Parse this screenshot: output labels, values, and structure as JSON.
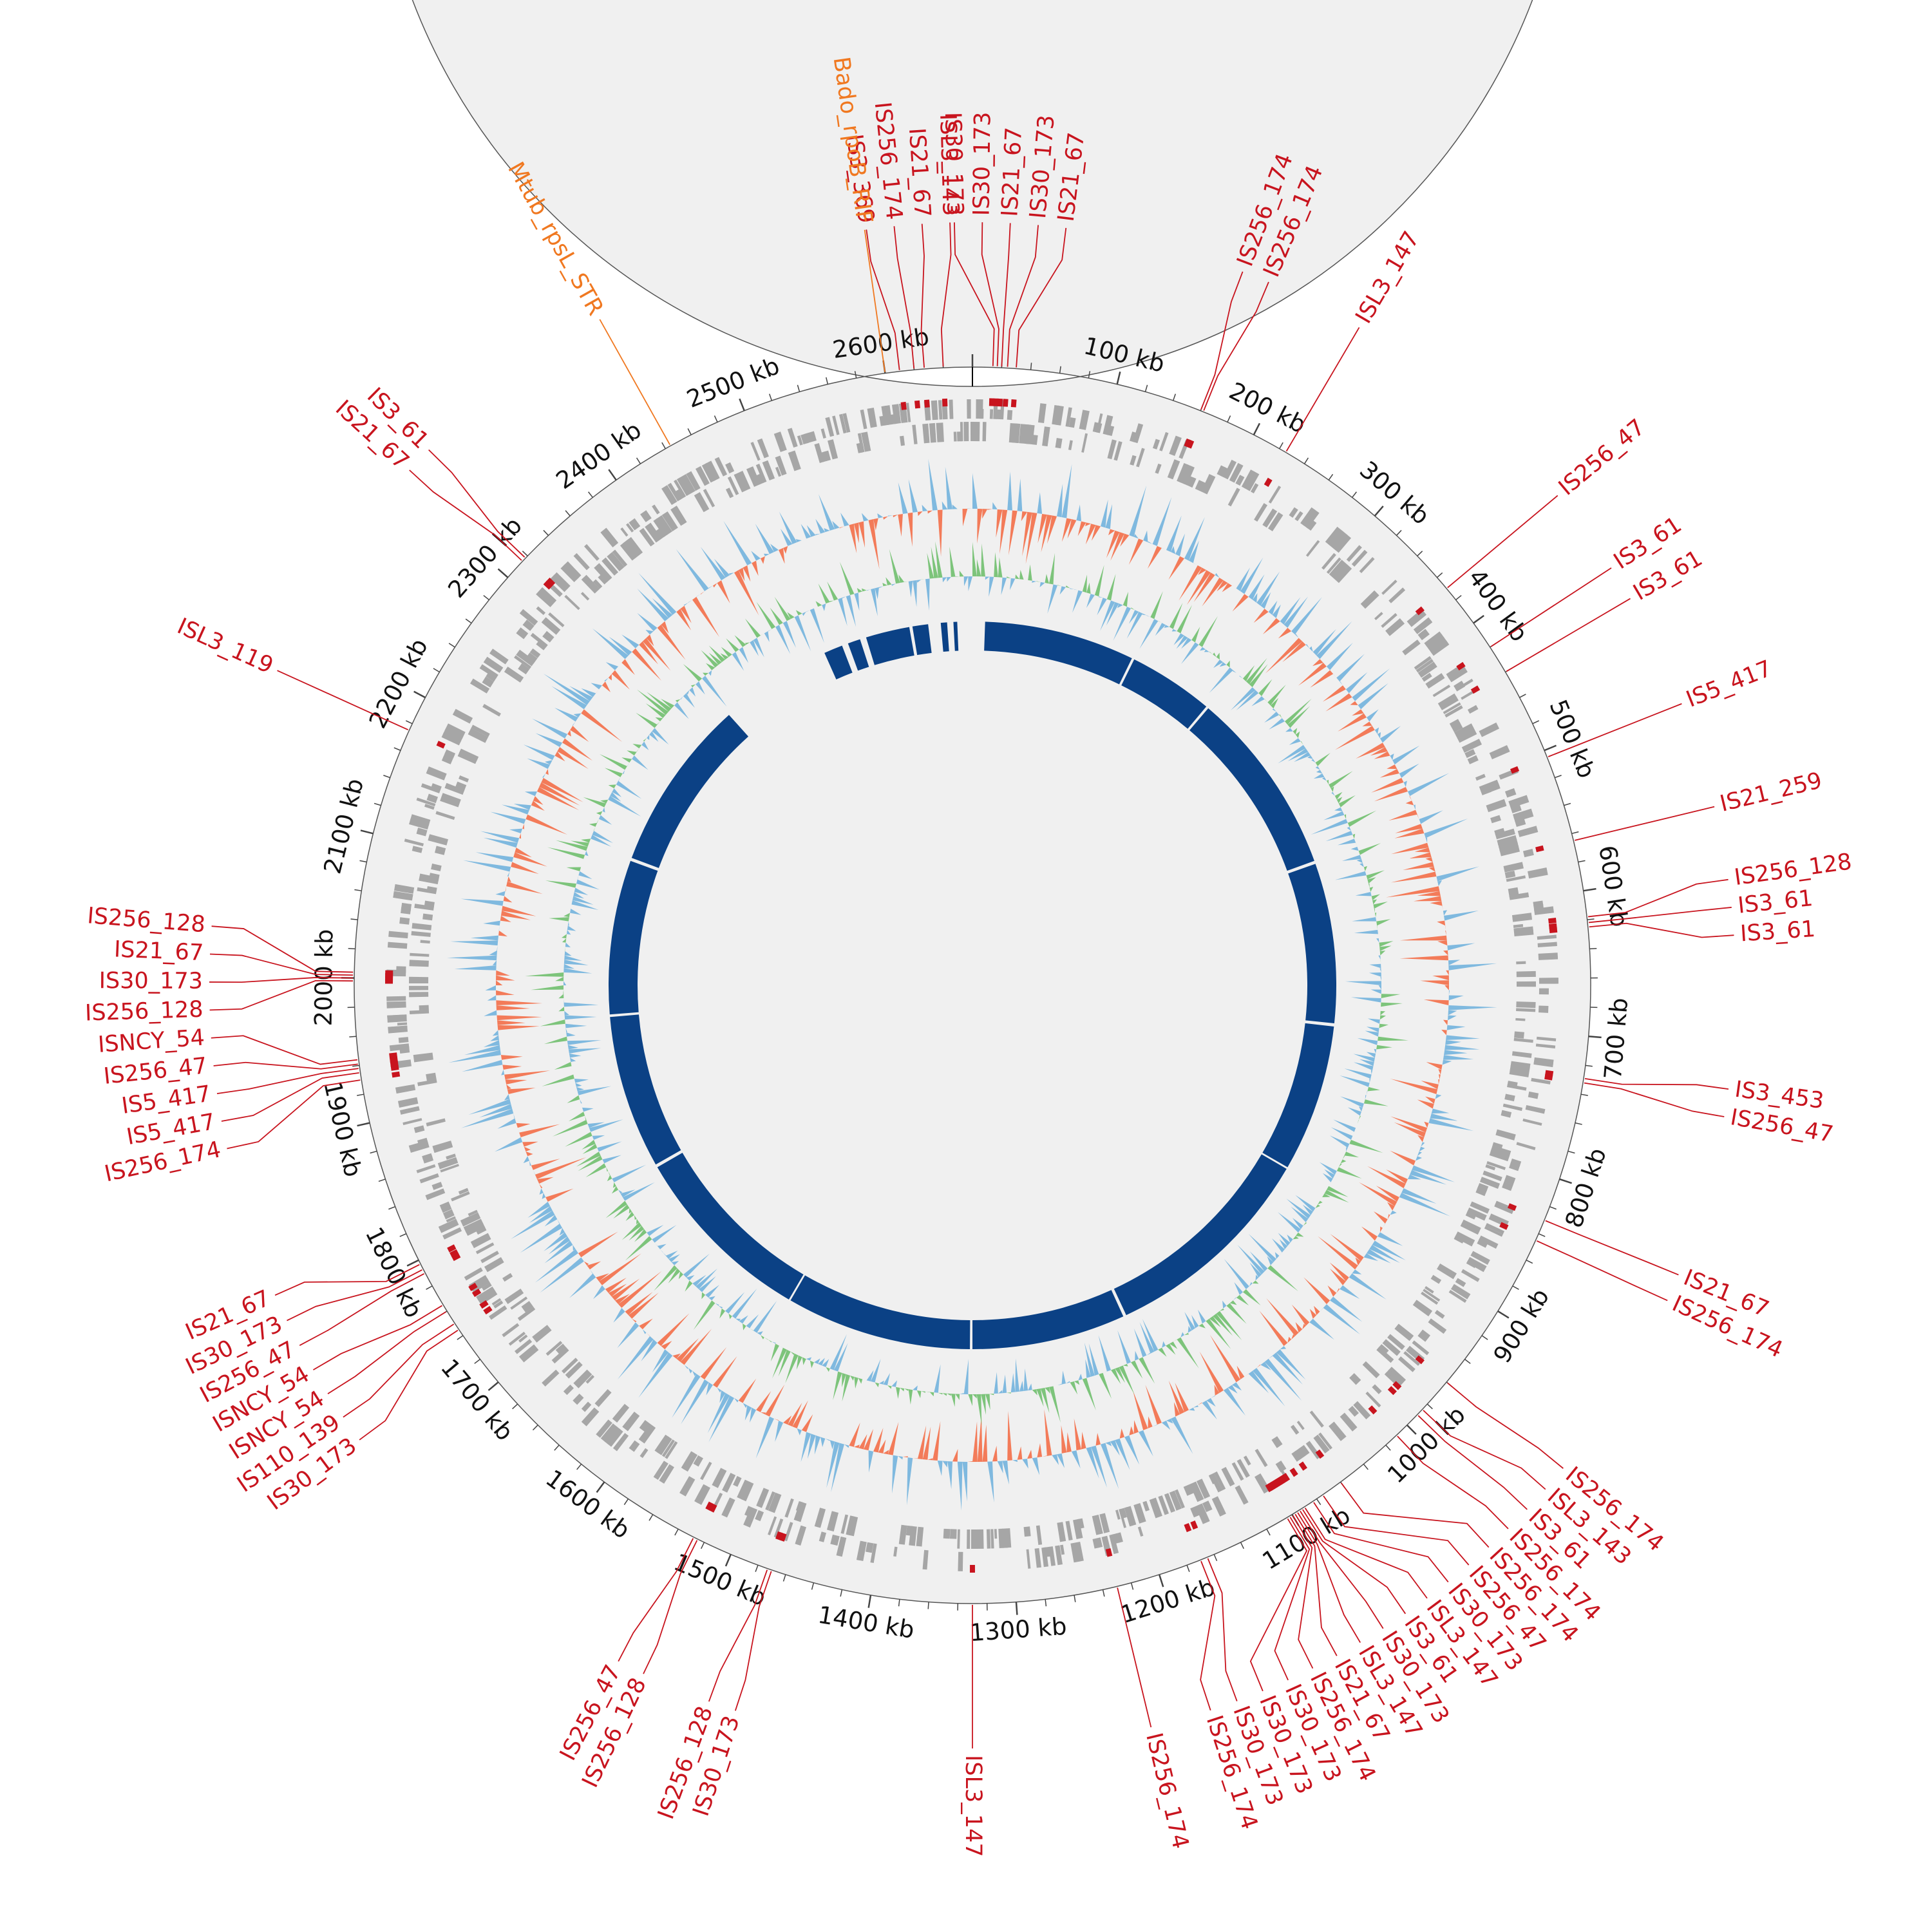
{
  "map": {
    "genome_size_kb": 2660,
    "colors": {
      "is_element": "#c8141e",
      "resistance": "#f07820",
      "ruler_ring": "#f0f0f0",
      "cds": "#a6a6a6",
      "gc_content_pos": "#7fb9df",
      "gc_content_neg": "#f37b59",
      "gc_skew": "#7dc47b",
      "blast_hit": "#0b4185"
    },
    "ruler_labels": [
      {
        "kb": 100,
        "label": "100 kb"
      },
      {
        "kb": 200,
        "label": "200 kb"
      },
      {
        "kb": 300,
        "label": "300 kb"
      },
      {
        "kb": 400,
        "label": "400 kb"
      },
      {
        "kb": 500,
        "label": "500 kb"
      },
      {
        "kb": 600,
        "label": "600 kb"
      },
      {
        "kb": 700,
        "label": "700 kb"
      },
      {
        "kb": 800,
        "label": "800 kb"
      },
      {
        "kb": 900,
        "label": "900 kb"
      },
      {
        "kb": 1000,
        "label": "1000 kb"
      },
      {
        "kb": 1100,
        "label": "1100 kb"
      },
      {
        "kb": 1200,
        "label": "1200 kb"
      },
      {
        "kb": 1300,
        "label": "1300 kb"
      },
      {
        "kb": 1400,
        "label": "1400 kb"
      },
      {
        "kb": 1500,
        "label": "1500 kb"
      },
      {
        "kb": 1600,
        "label": "1600 kb"
      },
      {
        "kb": 1700,
        "label": "1700 kb"
      },
      {
        "kb": 1800,
        "label": "1800 kb"
      },
      {
        "kb": 1900,
        "label": "1900 kb"
      },
      {
        "kb": 2000,
        "label": "2000 kb"
      },
      {
        "kb": 2100,
        "label": "2100 kb"
      },
      {
        "kb": 2200,
        "label": "2200 kb"
      },
      {
        "kb": 2300,
        "label": "2300 kb"
      },
      {
        "kb": 2400,
        "label": "2400 kb"
      },
      {
        "kb": 2500,
        "label": "2500 kb"
      },
      {
        "kb": 2600,
        "label": "2600 kb"
      }
    ],
    "resistance_genes": [
      {
        "kb": 2600,
        "label": "Bado_rpoB_RIF"
      },
      {
        "kb": 2444,
        "label": "Mtub_rpsL_STR"
      }
    ],
    "is_elements": [
      {
        "kb": 2610,
        "label": "IS3_369"
      },
      {
        "kb": 2620,
        "label": "IS256_174"
      },
      {
        "kb": 2627,
        "label": "IS21_67"
      },
      {
        "kb": 2640,
        "label": "ISL3_143"
      },
      {
        "kb": 14,
        "label": "IS30_173"
      },
      {
        "kb": 17,
        "label": "IS30_173"
      },
      {
        "kb": 20,
        "label": "IS21_67"
      },
      {
        "kb": 24,
        "label": "IS30_173"
      },
      {
        "kb": 30,
        "label": "IS21_67"
      },
      {
        "kb": 160,
        "label": "IS256_174"
      },
      {
        "kb": 162,
        "label": "IS256_174"
      },
      {
        "kb": 225,
        "label": "ISL3_147"
      },
      {
        "kb": 370,
        "label": "IS256_47"
      },
      {
        "kb": 420,
        "label": "IS3_61"
      },
      {
        "kb": 440,
        "label": "IS3_61"
      },
      {
        "kb": 505,
        "label": "IS5_417"
      },
      {
        "kb": 565,
        "label": "IS21_259"
      },
      {
        "kb": 618,
        "label": "IS256_128"
      },
      {
        "kb": 622,
        "label": "IS3_61"
      },
      {
        "kb": 625,
        "label": "IS3_61"
      },
      {
        "kb": 729,
        "label": "IS3_453"
      },
      {
        "kb": 732,
        "label": "IS256_47"
      },
      {
        "kb": 830,
        "label": "IS21_67"
      },
      {
        "kb": 845,
        "label": "IS256_174"
      },
      {
        "kb": 960,
        "label": "IS256_174"
      },
      {
        "kb": 985,
        "label": "ISL3_143"
      },
      {
        "kb": 990,
        "label": "IS3_61"
      },
      {
        "kb": 1010,
        "label": "IS256_174"
      },
      {
        "kb": 1060,
        "label": "IS256_174"
      },
      {
        "kb": 1075,
        "label": "IS256_47"
      },
      {
        "kb": 1083,
        "label": "IS30_173"
      },
      {
        "kb": 1090,
        "label": "ISL3_147"
      },
      {
        "kb": 1092,
        "label": "IS3_61"
      },
      {
        "kb": 1094,
        "label": "IS30_173"
      },
      {
        "kb": 1096,
        "label": "ISL3_147"
      },
      {
        "kb": 1098,
        "label": "IS21_67"
      },
      {
        "kb": 1100,
        "label": "IS256_174"
      },
      {
        "kb": 1102,
        "label": "IS30_173"
      },
      {
        "kb": 1104,
        "label": "IS30_173"
      },
      {
        "kb": 1165,
        "label": "IS30_173"
      },
      {
        "kb": 1170,
        "label": "IS256_174"
      },
      {
        "kb": 1230,
        "label": "IS256_174"
      },
      {
        "kb": 1330,
        "label": "ISL3_147"
      },
      {
        "kb": 1470,
        "label": "IS30_173"
      },
      {
        "kb": 1473,
        "label": "IS256_128"
      },
      {
        "kb": 1525,
        "label": "IS256_128"
      },
      {
        "kb": 1528,
        "label": "IS256_47"
      },
      {
        "kb": 1745,
        "label": "IS30_173"
      },
      {
        "kb": 1750,
        "label": "IS110_139"
      },
      {
        "kb": 1760,
        "label": "ISNCY_54"
      },
      {
        "kb": 1765,
        "label": "ISNCY_54"
      },
      {
        "kb": 1790,
        "label": "IS256_47"
      },
      {
        "kb": 1793,
        "label": "IS30_173"
      },
      {
        "kb": 1797,
        "label": "IS21_67"
      },
      {
        "kb": 1930,
        "label": "IS256_174"
      },
      {
        "kb": 1935,
        "label": "IS5_417"
      },
      {
        "kb": 1938,
        "label": "IS5_417"
      },
      {
        "kb": 1941,
        "label": "IS256_47"
      },
      {
        "kb": 1944,
        "label": "ISNCY_54"
      },
      {
        "kb": 1998,
        "label": "IS256_128"
      },
      {
        "kb": 2000,
        "label": "IS30_173"
      },
      {
        "kb": 2002,
        "label": "IS21_67"
      },
      {
        "kb": 2004,
        "label": "IS256_128"
      },
      {
        "kb": 2175,
        "label": "ISL3_119"
      },
      {
        "kb": 2315,
        "label": "IS21_67"
      },
      {
        "kb": 2318,
        "label": "IS3_61"
      }
    ]
  }
}
